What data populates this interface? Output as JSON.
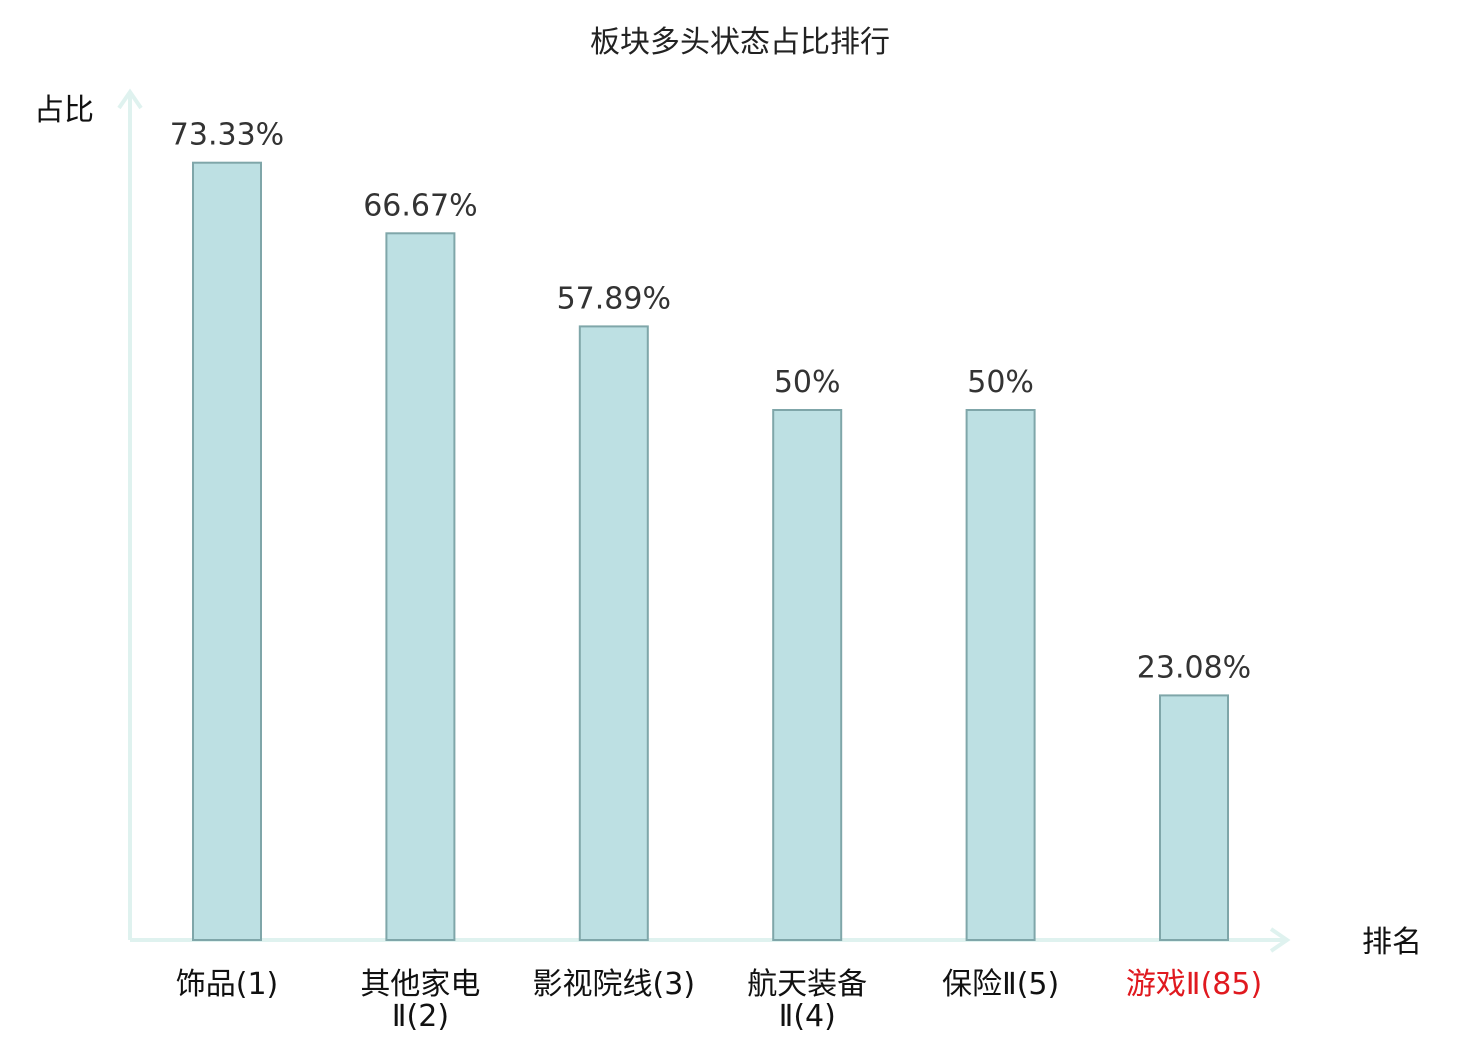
{
  "chart_data": {
    "type": "bar",
    "title": "板块多头状态占比排行",
    "ylabel": "占比",
    "xlabel": "排名",
    "categories": [
      [
        "饰品(1)"
      ],
      [
        "其他家电",
        "Ⅱ(2)"
      ],
      [
        "影视院线(3)"
      ],
      [
        "航天装备",
        "Ⅱ(4)"
      ],
      [
        "保险Ⅱ(5)"
      ],
      [
        "游戏Ⅱ(85)"
      ]
    ],
    "values": [
      73.33,
      66.67,
      57.89,
      50,
      50,
      23.08
    ],
    "value_labels": [
      "73.33%",
      "66.67%",
      "57.89%",
      "50%",
      "50%",
      "23.08%"
    ],
    "highlight_index": 5,
    "ylim": [
      0,
      100
    ],
    "grid": false,
    "colors": {
      "bar_fill": "#bde0e3",
      "bar_stroke": "#7fa6a9",
      "axis": "#dff2ef",
      "highlight": "#e0191f"
    }
  }
}
